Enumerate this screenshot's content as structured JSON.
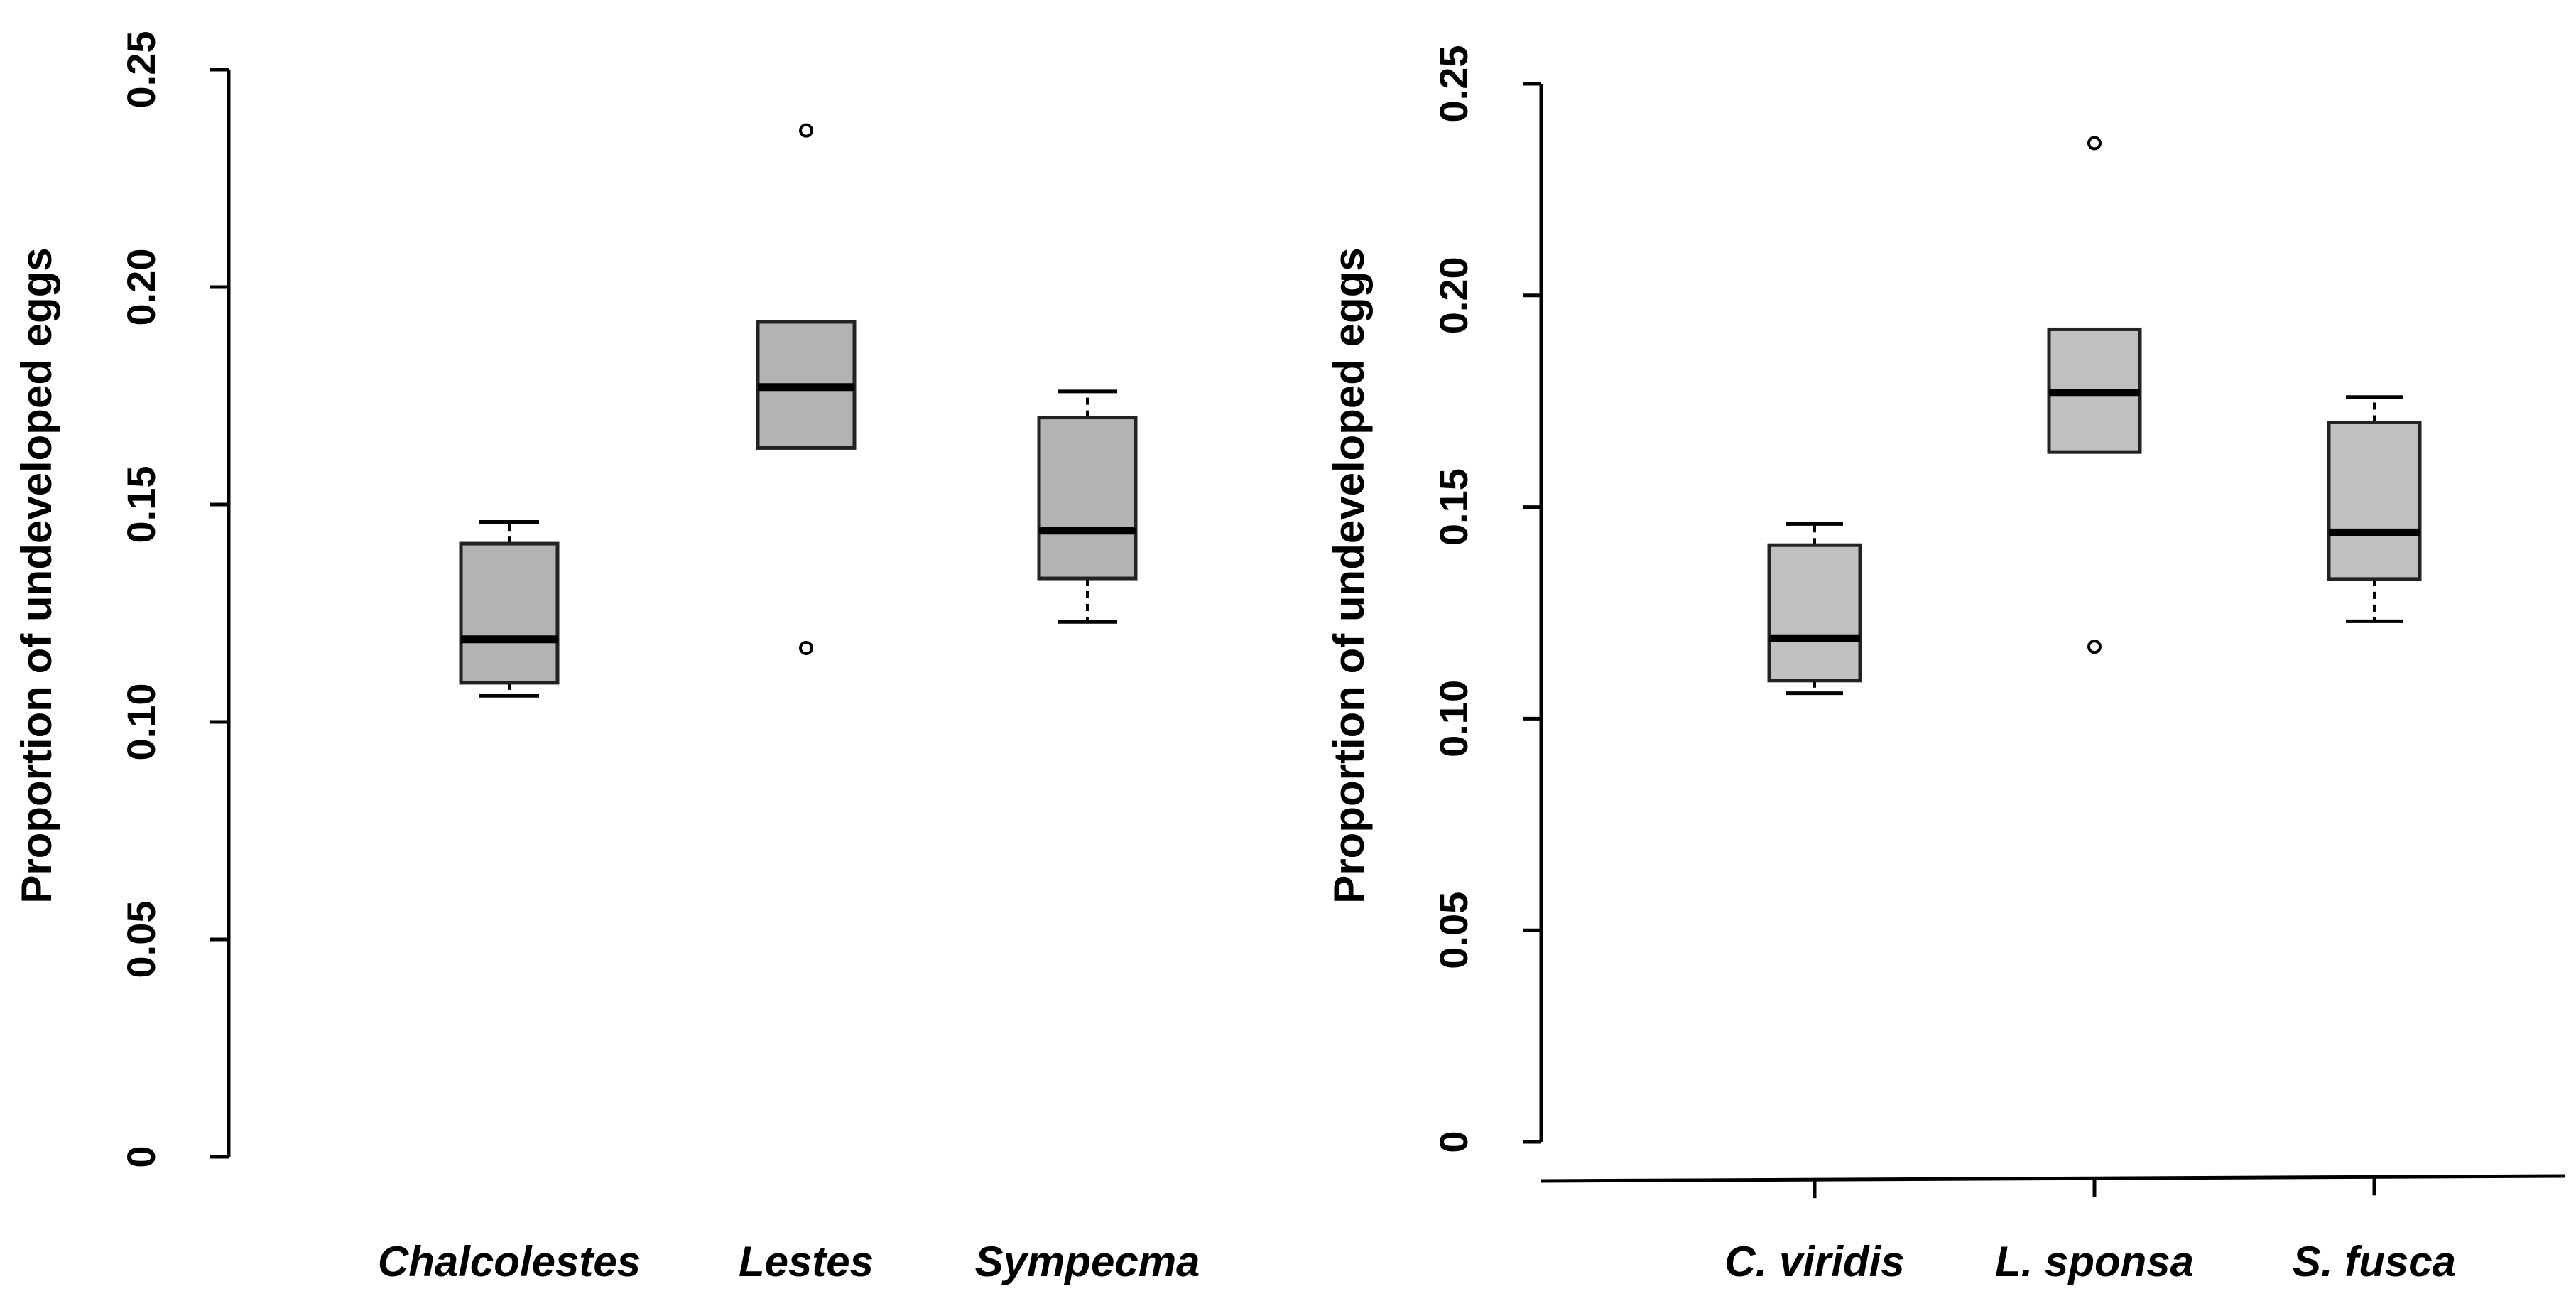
{
  "chart_data": [
    {
      "type": "box",
      "title": "",
      "xlabel": "",
      "ylabel": "Proportion of undeveloped eggs",
      "ylim": [
        0,
        0.25
      ],
      "yticks": [
        "0",
        "0.05",
        "0.10",
        "0.15",
        "0.20",
        "0.25"
      ],
      "ytick_values": [
        0,
        0.05,
        0.1,
        0.15,
        0.2,
        0.25
      ],
      "categories": [
        "Chalcolestes",
        "Lestes",
        "Sympecma"
      ],
      "boxes": [
        {
          "name": "Chalcolestes",
          "whisker_low": 0.106,
          "q1": 0.109,
          "median": 0.119,
          "q3": 0.141,
          "whisker_high": 0.146,
          "outliers": []
        },
        {
          "name": "Lestes",
          "whisker_low": 0.163,
          "q1": 0.163,
          "median": 0.177,
          "q3": 0.192,
          "whisker_high": 0.192,
          "outliers": [
            0.117,
            0.236
          ]
        },
        {
          "name": "Sympecma",
          "whisker_low": 0.123,
          "q1": 0.133,
          "median": 0.144,
          "q3": 0.17,
          "whisker_high": 0.176,
          "outliers": []
        }
      ],
      "box_color": "#b3b3b3",
      "has_x_axis_line": false
    },
    {
      "type": "box",
      "title": "",
      "xlabel": "",
      "ylabel": "Proportion of undeveloped eggs",
      "ylim": [
        0,
        0.25
      ],
      "yticks": [
        "0",
        "0.05",
        "0.10",
        "0.15",
        "0.20",
        "0.25"
      ],
      "ytick_values": [
        0,
        0.05,
        0.1,
        0.15,
        0.2,
        0.25
      ],
      "categories": [
        "C. viridis",
        "L. sponsa",
        "S. fusca"
      ],
      "boxes": [
        {
          "name": "C. viridis",
          "whisker_low": 0.106,
          "q1": 0.109,
          "median": 0.119,
          "q3": 0.141,
          "whisker_high": 0.146,
          "outliers": []
        },
        {
          "name": "L. sponsa",
          "whisker_low": 0.163,
          "q1": 0.163,
          "median": 0.177,
          "q3": 0.192,
          "whisker_high": 0.192,
          "outliers": [
            0.117,
            0.236
          ]
        },
        {
          "name": "S. fusca",
          "whisker_low": 0.123,
          "q1": 0.133,
          "median": 0.144,
          "q3": 0.17,
          "whisker_high": 0.176,
          "outliers": []
        }
      ],
      "box_color": "#c0c0c0",
      "has_x_axis_line": true
    }
  ]
}
